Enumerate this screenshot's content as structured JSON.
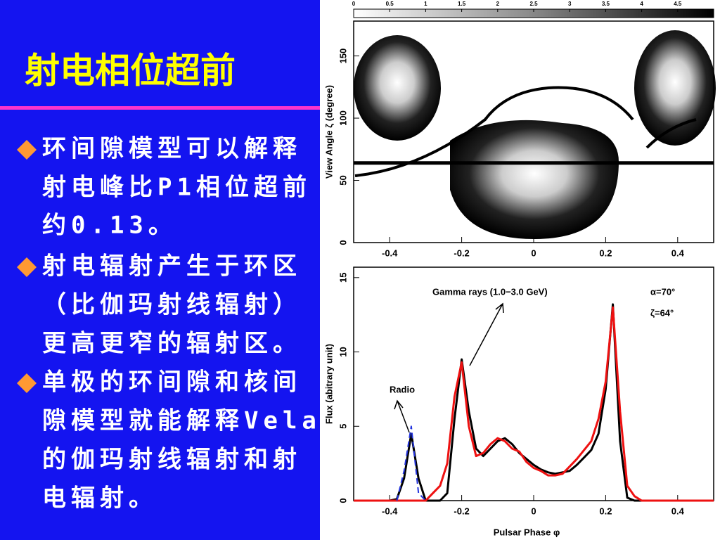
{
  "slide": {
    "title": "射电相位超前",
    "bullets": [
      [
        "环间隙模型可以解释",
        "射电峰比P1相位超前",
        "约0.13。"
      ],
      [
        "射电辐射产生于环区",
        "（比伽玛射线辐射）",
        "更高更窄的辐射区。"
      ],
      [
        "单极的环间隙和核间",
        "隙模型就能解释Vela",
        "的伽玛射线辐射和射",
        "电辐射。"
      ]
    ]
  },
  "chart_data": [
    {
      "type": "image",
      "ylabel": "View Angle ζ (degree)",
      "xlim": [
        -0.5,
        0.5
      ],
      "xticks": [
        -0.4,
        -0.2,
        0,
        0.2,
        0.4
      ],
      "ylim": [
        0,
        178
      ],
      "yticks": [
        0,
        50,
        100,
        150
      ],
      "clim": [
        0,
        5
      ],
      "cticks": [
        0,
        0.5,
        1,
        1.5,
        2,
        2.5,
        3,
        3.5,
        4,
        4.5
      ],
      "hline": 64
    },
    {
      "type": "line",
      "xlabel": "Pulsar Phase φ",
      "ylabel": "Flux (abitrary unit)",
      "annotations": [
        "Gamma rays (1.0−3.0 GeV)",
        "Radio",
        "α=70°",
        "ζ=64°"
      ],
      "xlim": [
        -0.5,
        0.5
      ],
      "xticks": [
        -0.4,
        -0.2,
        0,
        0.2,
        0.4
      ],
      "ylim": [
        0,
        15.7
      ],
      "yticks": [
        0,
        5,
        10,
        15
      ],
      "x": [
        -0.5,
        -0.48,
        -0.46,
        -0.44,
        -0.42,
        -0.4,
        -0.38,
        -0.36,
        -0.34,
        -0.32,
        -0.3,
        -0.28,
        -0.26,
        -0.24,
        -0.22,
        -0.2,
        -0.18,
        -0.16,
        -0.14,
        -0.12,
        -0.1,
        -0.08,
        -0.06,
        -0.04,
        -0.02,
        0,
        0.02,
        0.04,
        0.06,
        0.08,
        0.1,
        0.12,
        0.14,
        0.16,
        0.18,
        0.2,
        0.22,
        0.24,
        0.26,
        0.28,
        0.3,
        0.32,
        0.34,
        0.36,
        0.38,
        0.4,
        0.42,
        0.44,
        0.46,
        0.48,
        0.5
      ],
      "series": [
        {
          "color": "#000000",
          "dash": false,
          "values": [
            0,
            0,
            0,
            0,
            0,
            0,
            0.1,
            1.5,
            4.5,
            1.5,
            0,
            0,
            0,
            0.5,
            5.5,
            9.5,
            6,
            3.5,
            3,
            3.5,
            4,
            4.2,
            3.8,
            3.2,
            2.8,
            2.4,
            2.1,
            1.9,
            1.8,
            1.9,
            2,
            2.4,
            2.9,
            3.4,
            4.5,
            7.5,
            13.2,
            4,
            0.2,
            0,
            0,
            0,
            0,
            0,
            0,
            0,
            0,
            0,
            0,
            0,
            0
          ]
        },
        {
          "color": "#ee1111",
          "dash": false,
          "values": [
            0,
            0,
            0,
            0,
            0,
            0,
            0,
            0,
            0,
            0,
            0,
            0.5,
            1,
            2.5,
            7,
            9.3,
            5,
            3,
            3.2,
            3.8,
            4.2,
            4,
            3.5,
            3.3,
            2.6,
            2.2,
            2,
            1.7,
            1.7,
            1.8,
            2.3,
            2.8,
            3.4,
            4,
            5.5,
            8,
            13,
            6,
            1,
            0.3,
            0,
            0,
            0,
            0,
            0,
            0,
            0,
            0,
            0,
            0,
            0
          ]
        },
        {
          "color": "#2233dd",
          "dash": true,
          "values": [
            null,
            null,
            null,
            null,
            null,
            null,
            0,
            2,
            5,
            0.5,
            0,
            null,
            null,
            null,
            null,
            null,
            null,
            null,
            null,
            null,
            null,
            null,
            null,
            null,
            null,
            null,
            null,
            null,
            null,
            null,
            null,
            null,
            null,
            null,
            null,
            null,
            null,
            null,
            null,
            null,
            null,
            null,
            null,
            null,
            null,
            null,
            null,
            null,
            null,
            null,
            null
          ]
        }
      ]
    }
  ]
}
